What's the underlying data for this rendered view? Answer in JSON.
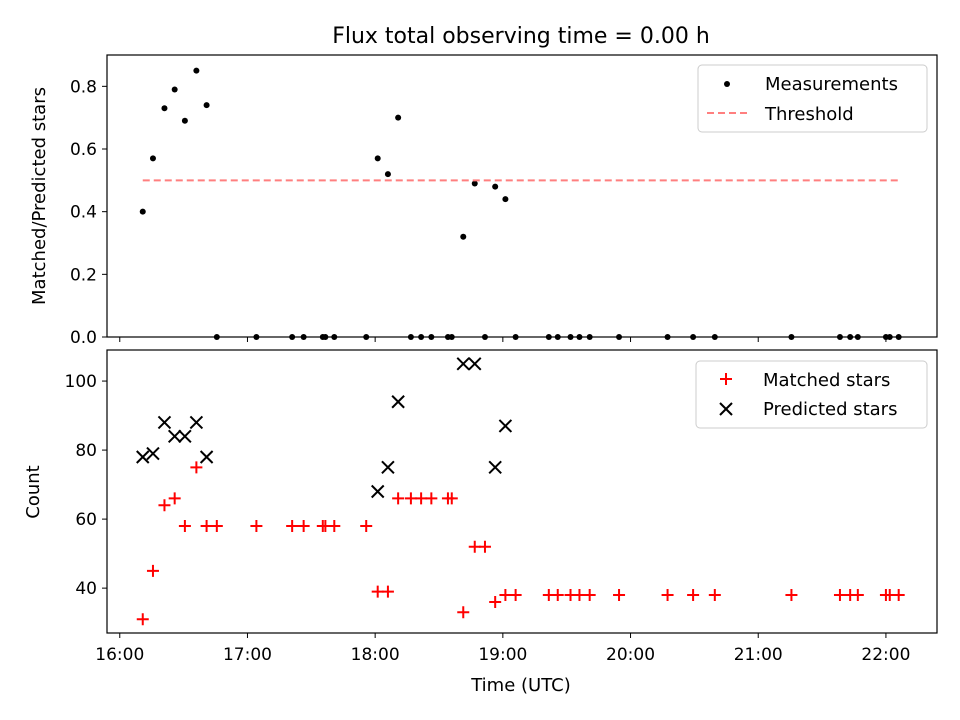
{
  "figure": {
    "title": "Flux total observing time = 0.00 h",
    "xlabel": "Time (UTC)"
  },
  "chart_data": [
    {
      "type": "scatter",
      "title": "Flux total observing time = 0.00 h",
      "ylabel": "Matched/Predicted stars",
      "xlim": [
        15.9,
        22.4
      ],
      "ylim": [
        0.0,
        0.9
      ],
      "xticks": [
        16,
        17,
        18,
        19,
        20,
        21,
        22
      ],
      "yticks": [
        0.0,
        0.2,
        0.4,
        0.6,
        0.8
      ],
      "ytick_labels": [
        "0.0",
        "0.2",
        "0.4",
        "0.6",
        "0.8"
      ],
      "legend_position": "top-right",
      "series": [
        {
          "name": "Measurements",
          "marker": "dot",
          "color": "#000000",
          "points": [
            [
              16.18,
              0.4
            ],
            [
              16.26,
              0.57
            ],
            [
              16.35,
              0.73
            ],
            [
              16.43,
              0.79
            ],
            [
              16.51,
              0.69
            ],
            [
              16.6,
              0.85
            ],
            [
              16.68,
              0.74
            ],
            [
              16.76,
              0.0
            ],
            [
              17.07,
              0.0
            ],
            [
              17.35,
              0.0
            ],
            [
              17.44,
              0.0
            ],
            [
              17.59,
              0.0
            ],
            [
              17.61,
              0.0
            ],
            [
              17.68,
              0.0
            ],
            [
              17.93,
              0.0
            ],
            [
              18.02,
              0.57
            ],
            [
              18.1,
              0.52
            ],
            [
              18.18,
              0.7
            ],
            [
              18.28,
              0.0
            ],
            [
              18.36,
              0.0
            ],
            [
              18.44,
              0.0
            ],
            [
              18.57,
              0.0
            ],
            [
              18.6,
              0.0
            ],
            [
              18.69,
              0.32
            ],
            [
              18.78,
              0.49
            ],
            [
              18.86,
              0.0
            ],
            [
              18.94,
              0.48
            ],
            [
              19.02,
              0.44
            ],
            [
              19.1,
              0.0
            ],
            [
              19.36,
              0.0
            ],
            [
              19.43,
              0.0
            ],
            [
              19.53,
              0.0
            ],
            [
              19.6,
              0.0
            ],
            [
              19.68,
              0.0
            ],
            [
              19.91,
              0.0
            ],
            [
              20.29,
              0.0
            ],
            [
              20.49,
              0.0
            ],
            [
              20.66,
              0.0
            ],
            [
              21.26,
              0.0
            ],
            [
              21.64,
              0.0
            ],
            [
              21.72,
              0.0
            ],
            [
              21.78,
              0.0
            ],
            [
              22.0,
              0.0
            ],
            [
              22.03,
              0.0
            ],
            [
              22.1,
              0.0
            ]
          ]
        },
        {
          "name": "Threshold",
          "style": "dashed-line",
          "color": "#ff7f7f",
          "points": [
            [
              16.18,
              0.5
            ],
            [
              22.1,
              0.5
            ]
          ]
        }
      ]
    },
    {
      "type": "scatter",
      "xlabel": "Time (UTC)",
      "ylabel": "Count",
      "xlim": [
        15.9,
        22.4
      ],
      "ylim": [
        27,
        109
      ],
      "xticks": [
        16,
        17,
        18,
        19,
        20,
        21,
        22
      ],
      "xtick_labels": [
        "16:00",
        "17:00",
        "18:00",
        "19:00",
        "20:00",
        "21:00",
        "22:00"
      ],
      "yticks": [
        40,
        60,
        80,
        100
      ],
      "ytick_labels": [
        "40",
        "60",
        "80",
        "100"
      ],
      "legend_position": "top-right",
      "series": [
        {
          "name": "Matched stars",
          "marker": "plus",
          "color": "#ff0000",
          "points": [
            [
              16.18,
              31
            ],
            [
              16.26,
              45
            ],
            [
              16.35,
              64
            ],
            [
              16.43,
              66
            ],
            [
              16.51,
              58
            ],
            [
              16.6,
              75
            ],
            [
              16.68,
              58
            ],
            [
              16.76,
              58
            ],
            [
              17.07,
              58
            ],
            [
              17.35,
              58
            ],
            [
              17.44,
              58
            ],
            [
              17.59,
              58
            ],
            [
              17.61,
              58
            ],
            [
              17.68,
              58
            ],
            [
              17.93,
              58
            ],
            [
              18.02,
              39
            ],
            [
              18.1,
              39
            ],
            [
              18.18,
              66
            ],
            [
              18.28,
              66
            ],
            [
              18.36,
              66
            ],
            [
              18.44,
              66
            ],
            [
              18.57,
              66
            ],
            [
              18.6,
              66
            ],
            [
              18.69,
              33
            ],
            [
              18.78,
              52
            ],
            [
              18.86,
              52
            ],
            [
              18.94,
              36
            ],
            [
              19.02,
              38
            ],
            [
              19.1,
              38
            ],
            [
              19.36,
              38
            ],
            [
              19.43,
              38
            ],
            [
              19.53,
              38
            ],
            [
              19.6,
              38
            ],
            [
              19.68,
              38
            ],
            [
              19.91,
              38
            ],
            [
              20.29,
              38
            ],
            [
              20.49,
              38
            ],
            [
              20.66,
              38
            ],
            [
              21.26,
              38
            ],
            [
              21.64,
              38
            ],
            [
              21.72,
              38
            ],
            [
              21.78,
              38
            ],
            [
              22.0,
              38
            ],
            [
              22.03,
              38
            ],
            [
              22.1,
              38
            ]
          ]
        },
        {
          "name": "Predicted stars",
          "marker": "x",
          "color": "#000000",
          "points": [
            [
              16.18,
              78
            ],
            [
              16.26,
              79
            ],
            [
              16.35,
              88
            ],
            [
              16.43,
              84
            ],
            [
              16.51,
              84
            ],
            [
              16.6,
              88
            ],
            [
              16.68,
              78
            ],
            [
              18.02,
              68
            ],
            [
              18.1,
              75
            ],
            [
              18.18,
              94
            ],
            [
              18.69,
              105
            ],
            [
              18.78,
              105
            ],
            [
              18.94,
              75
            ],
            [
              19.02,
              87
            ]
          ]
        }
      ]
    }
  ]
}
